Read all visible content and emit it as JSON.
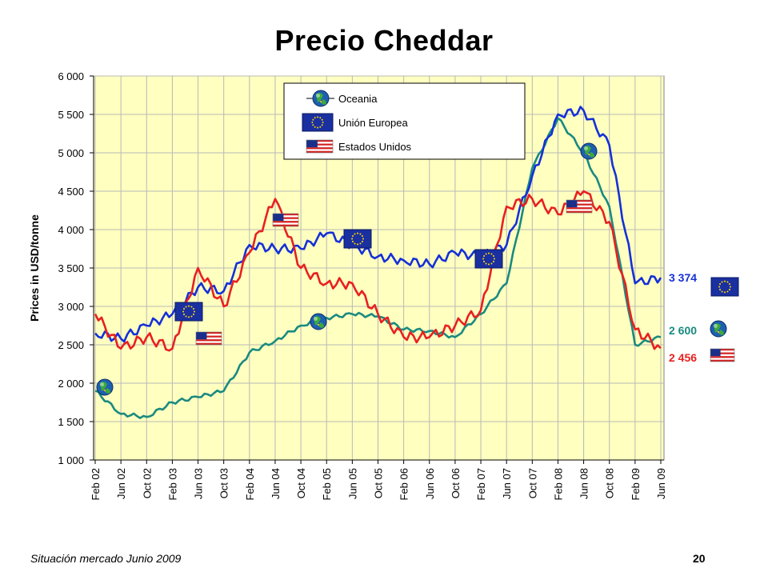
{
  "slide": {
    "title": "Precio Cheddar",
    "footer_left": "Situación mercado Junio 2009",
    "footer_right": "20"
  },
  "colors": {
    "background_plot": "#FFFFC0",
    "oceania": "#1A8A80",
    "eu": "#1530D8",
    "us": "#E82020",
    "eu_flag": "#1A2FA0",
    "eu_star": "#FFD700"
  },
  "chart_data": {
    "type": "line",
    "title": "Precio Cheddar",
    "xlabel": "",
    "ylabel": "Prices in USD/tonne",
    "ylim": [
      1000,
      6000
    ],
    "grid": true,
    "legend_position": "top-center",
    "y_ticks": [
      1000,
      1500,
      2000,
      2500,
      3000,
      3500,
      4000,
      4500,
      5000,
      5500,
      6000
    ],
    "y_tick_labels": [
      "1 000",
      "1 500",
      "2 000",
      "2 500",
      "3 000",
      "3 500",
      "4 000",
      "4 500",
      "5 000",
      "5 500",
      "6 000"
    ],
    "x_tick_labels": [
      "Feb 02",
      "Jun 02",
      "Oct 02",
      "Feb 03",
      "Jun 03",
      "Oct 03",
      "Feb 04",
      "Jun 04",
      "Oct 04",
      "Feb 05",
      "Jun 05",
      "Oct 05",
      "Feb 06",
      "Jun 06",
      "Oct 06",
      "Feb 07",
      "Jun 07",
      "Oct 07",
      "Feb 08",
      "Jun 08",
      "Oct 08",
      "Feb 09",
      "Jun 09"
    ],
    "series": [
      {
        "name": "Oceania",
        "icon": "globe-icon",
        "end_label": "2 600",
        "x": [
          "Feb 02",
          "Jun 02",
          "Oct 02",
          "Feb 03",
          "Jun 03",
          "Oct 03",
          "Feb 04",
          "Jun 04",
          "Oct 04",
          "Feb 05",
          "Jun 05",
          "Oct 05",
          "Feb 06",
          "Jun 06",
          "Oct 06",
          "Feb 07",
          "Jun 07",
          "Oct 07",
          "Feb 08",
          "Jun 08",
          "Oct 08",
          "Feb 09",
          "Jun 09"
        ],
        "values": [
          1900,
          1600,
          1560,
          1750,
          1820,
          1900,
          2400,
          2550,
          2750,
          2850,
          2900,
          2870,
          2700,
          2680,
          2600,
          2900,
          3300,
          4800,
          5450,
          5000,
          4300,
          2500,
          2600
        ]
      },
      {
        "name": "Unión Europea",
        "icon": "eu-flag-icon",
        "end_label": "3 374",
        "x": [
          "Feb 02",
          "Jun 02",
          "Oct 02",
          "Feb 03",
          "Jun 03",
          "Oct 03",
          "Feb 04",
          "Jun 04",
          "Oct 04",
          "Feb 05",
          "Jun 05",
          "Oct 05",
          "Feb 06",
          "Jun 06",
          "Oct 06",
          "Feb 07",
          "Jun 07",
          "Oct 07",
          "Feb 08",
          "Jun 08",
          "Oct 08",
          "Feb 09",
          "Jun 09"
        ],
        "values": [
          2650,
          2580,
          2750,
          2900,
          3250,
          3200,
          3800,
          3750,
          3750,
          3950,
          3800,
          3650,
          3600,
          3550,
          3700,
          3650,
          3800,
          4700,
          5500,
          5550,
          5100,
          3300,
          3374
        ]
      },
      {
        "name": "Estados Unidos",
        "icon": "us-flag-icon",
        "end_label": "2 456",
        "x": [
          "Feb 02",
          "Jun 02",
          "Oct 02",
          "Feb 03",
          "Jun 03",
          "Oct 03",
          "Feb 04",
          "Jun 04",
          "Oct 04",
          "Feb 05",
          "Jun 05",
          "Oct 05",
          "Feb 06",
          "Jun 06",
          "Oct 06",
          "Feb 07",
          "Jun 07",
          "Oct 07",
          "Feb 08",
          "Jun 08",
          "Oct 08",
          "Feb 09",
          "Jun 09"
        ],
        "values": [
          2900,
          2450,
          2600,
          2450,
          3500,
          3000,
          3700,
          4400,
          3500,
          3300,
          3300,
          2900,
          2600,
          2600,
          2750,
          2950,
          4300,
          4400,
          4200,
          4500,
          4100,
          2700,
          2456
        ]
      }
    ]
  }
}
